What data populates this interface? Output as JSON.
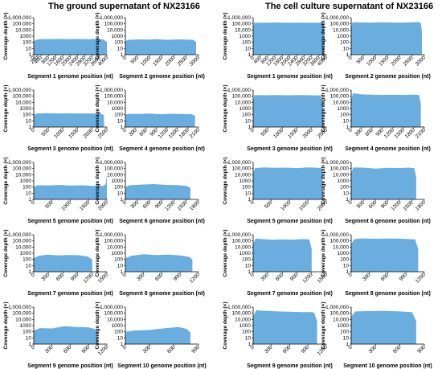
{
  "figure": {
    "left_title": "The ground supernatant of NX23166",
    "right_title": "The cell culture supernatant of NX23166",
    "fill_color": "#6aaee0",
    "y_axis_label": "Coverage depth (×)",
    "y_tick_labels": [
      "1",
      "10",
      "100",
      "1000",
      "10,000",
      "100,000",
      "1,000,000"
    ],
    "scale": "log"
  },
  "chart_data": [
    {
      "type": "area",
      "panel": "ground",
      "title": "Segment 1 genome position (nt)",
      "xlabel": "Segment 1 genome position (nt)",
      "ylabel": "Coverage depth (×)",
      "yscale": "log",
      "ylim": [
        1,
        1000000
      ],
      "xlim": [
        0,
        4000
      ],
      "xticks": [
        0,
        200,
        400,
        800,
        1200,
        1600,
        2000,
        2400,
        2800,
        3200,
        3600,
        4000
      ],
      "xtick_labels": [
        "0",
        "200",
        "400",
        "800",
        "1200",
        "1600",
        "2000",
        "2400",
        "2800",
        "3200",
        "3600",
        "4000"
      ],
      "x": [
        0,
        200,
        600,
        1000,
        1400,
        1800,
        2200,
        2600,
        3000,
        3400,
        3800,
        4000
      ],
      "y": [
        150,
        300,
        350,
        320,
        360,
        330,
        350,
        340,
        330,
        360,
        300,
        120
      ]
    },
    {
      "type": "area",
      "panel": "ground",
      "title": "Segment 2 genome position (nt)",
      "xlabel": "Segment 2 genome position (nt)",
      "ylabel": "Coverage depth (×)",
      "yscale": "log",
      "ylim": [
        1,
        1000000
      ],
      "xlim": [
        0,
        3000
      ],
      "xticks": [
        0,
        500,
        1000,
        1500,
        2000,
        2500,
        3000
      ],
      "xtick_labels": [
        "0",
        "500",
        "1000",
        "1500",
        "2000",
        "2500",
        "3000"
      ],
      "x": [
        0,
        100,
        500,
        900,
        1300,
        1700,
        2100,
        2500,
        2800,
        2900
      ],
      "y": [
        150,
        250,
        300,
        280,
        320,
        260,
        300,
        280,
        250,
        100
      ]
    },
    {
      "type": "area",
      "panel": "ground",
      "title": "Segment 3 genome position (nt)",
      "xlabel": "Segment 3 genome position (nt)",
      "ylabel": "Coverage depth (×)",
      "yscale": "log",
      "ylim": [
        1,
        1000000
      ],
      "xlim": [
        0,
        2500
      ],
      "xticks": [
        0,
        500,
        1000,
        1500,
        2000,
        2500
      ],
      "xtick_labels": [
        "0",
        "500",
        "1000",
        "1500",
        "2000",
        "2500"
      ],
      "x": [
        0,
        100,
        400,
        800,
        1200,
        1600,
        2000,
        2300,
        2400
      ],
      "y": [
        100,
        150,
        180,
        160,
        170,
        150,
        160,
        140,
        80
      ]
    },
    {
      "type": "area",
      "panel": "ground",
      "title": "Segment 4 genome position (nt)",
      "xlabel": "Segment 4 genome position (nt)",
      "ylabel": "Coverage depth (×)",
      "yscale": "log",
      "ylim": [
        1,
        1000000
      ],
      "xlim": [
        0,
        2100
      ],
      "xticks": [
        0,
        300,
        600,
        900,
        1200,
        1500,
        1800,
        2100
      ],
      "xtick_labels": [
        "0",
        "300",
        "600",
        "900",
        "1200",
        "1500",
        "1800",
        "2100"
      ],
      "x": [
        0,
        100,
        400,
        700,
        1000,
        1300,
        1600,
        1900,
        2000
      ],
      "y": [
        100,
        140,
        130,
        150,
        120,
        140,
        130,
        120,
        70
      ]
    },
    {
      "type": "area",
      "panel": "ground",
      "title": "Segment 5 genome position (nt)",
      "xlabel": "Segment 5 genome position (nt)",
      "ylabel": "Coverage depth (×)",
      "yscale": "log",
      "ylim": [
        1,
        1000000
      ],
      "xlim": [
        0,
        2000
      ],
      "xticks": [
        0,
        500,
        1000,
        1500,
        2000
      ],
      "xtick_labels": [
        "0",
        "500",
        "1000",
        "1500",
        "2000"
      ],
      "x": [
        0,
        100,
        400,
        700,
        1000,
        1300,
        1600,
        1900,
        1970,
        1990,
        2000
      ],
      "y": [
        100,
        200,
        180,
        220,
        170,
        190,
        160,
        150,
        300,
        8000,
        500
      ]
    },
    {
      "type": "area",
      "panel": "ground",
      "title": "Segment 6 genome position (nt)",
      "xlabel": "Segment 6 genome position (nt)",
      "ylabel": "Coverage depth (×)",
      "yscale": "log",
      "ylim": [
        1,
        1000000
      ],
      "xlim": [
        0,
        1800
      ],
      "xticks": [
        0,
        300,
        600,
        900,
        1200,
        1500,
        1800
      ],
      "xtick_labels": [
        "0",
        "300",
        "600",
        "900",
        "1200",
        "1500",
        "1800"
      ],
      "x": [
        0,
        100,
        400,
        700,
        1000,
        1300,
        1500,
        1600
      ],
      "y": [
        100,
        200,
        250,
        300,
        220,
        200,
        150,
        80
      ]
    },
    {
      "type": "area",
      "panel": "ground",
      "title": "Segment 7 genome position (nt)",
      "xlabel": "Segment 7 genome position (nt)",
      "ylabel": "Coverage depth (×)",
      "yscale": "log",
      "ylim": [
        1,
        1000000
      ],
      "xlim": [
        0,
        1500
      ],
      "xticks": [
        0,
        300,
        600,
        900,
        1200,
        1500
      ],
      "xtick_labels": [
        "0",
        "300",
        "600",
        "900",
        "1200",
        "1500"
      ],
      "x": [
        0,
        100,
        300,
        500,
        700,
        900,
        1100,
        1200
      ],
      "y": [
        150,
        400,
        600,
        450,
        500,
        480,
        300,
        100
      ]
    },
    {
      "type": "area",
      "panel": "ground",
      "title": "Segment 8 genome position (nt)",
      "xlabel": "Segment 8 genome position (nt)",
      "ylabel": "Coverage depth (×)",
      "yscale": "log",
      "ylim": [
        1,
        1000000
      ],
      "xlim": [
        0,
        1200
      ],
      "xticks": [
        0,
        300,
        600,
        900,
        1200
      ],
      "xtick_labels": [
        "0",
        "300",
        "600",
        "900",
        "1200"
      ],
      "x": [
        0,
        100,
        300,
        500,
        700,
        900,
        1050,
        1100
      ],
      "y": [
        150,
        400,
        700,
        500,
        600,
        450,
        250,
        100
      ]
    },
    {
      "type": "area",
      "panel": "ground",
      "title": "Segment 9 genome position (nt)",
      "xlabel": "Segment 9 genome position (nt)",
      "ylabel": "Coverage depth (×)",
      "yscale": "log",
      "ylim": [
        1,
        1000000
      ],
      "xlim": [
        0,
        1200
      ],
      "xticks": [
        0,
        300,
        600,
        900,
        1200
      ],
      "xtick_labels": [
        "0",
        "300",
        "600",
        "900",
        "1200"
      ],
      "x": [
        0,
        100,
        300,
        500,
        700,
        900,
        1000,
        1050
      ],
      "y": [
        150,
        400,
        350,
        800,
        600,
        500,
        300,
        100
      ]
    },
    {
      "type": "area",
      "panel": "ground",
      "title": "Segment 10 genome position (nt)",
      "xlabel": "Segment 10 genome position (nt)",
      "ylabel": "Coverage depth (×)",
      "yscale": "log",
      "ylim": [
        1,
        1000000
      ],
      "xlim": [
        0,
        900
      ],
      "xticks": [
        0,
        300,
        600,
        900
      ],
      "xtick_labels": [
        "0",
        "300",
        "600",
        "900"
      ],
      "x": [
        0,
        100,
        300,
        500,
        650,
        750,
        800
      ],
      "y": [
        100,
        150,
        200,
        400,
        600,
        300,
        80
      ]
    },
    {
      "type": "area",
      "panel": "cell",
      "title": "Segment 1 genome position (nt)",
      "xlabel": "Segment 1 genome position (nt)",
      "ylabel": "Coverage depth (×)",
      "yscale": "log",
      "ylim": [
        1,
        1000000
      ],
      "xlim": [
        0,
        4000
      ],
      "xticks": [
        0,
        400,
        800,
        1200,
        1600,
        2000,
        2400,
        2800,
        3200,
        3600,
        4000
      ],
      "xtick_labels": [
        "0",
        "400",
        "800",
        "1200",
        "1600",
        "2000",
        "2400",
        "2800",
        "3200",
        "3600",
        "4000"
      ],
      "x": [
        0,
        50,
        400,
        800,
        1200,
        1600,
        2000,
        2400,
        2800,
        3200,
        3600,
        3850,
        3900
      ],
      "y": [
        20000,
        150000,
        160000,
        150000,
        170000,
        160000,
        150000,
        160000,
        150000,
        160000,
        150000,
        140000,
        5000
      ]
    },
    {
      "type": "area",
      "panel": "cell",
      "title": "Segment 2 genome position (nt)",
      "xlabel": "Segment 2 genome position (nt)",
      "ylabel": "Coverage depth (×)",
      "yscale": "log",
      "ylim": [
        1,
        1000000
      ],
      "xlim": [
        0,
        3000
      ],
      "xticks": [
        0,
        500,
        1000,
        1500,
        2000,
        2500,
        3000
      ],
      "xtick_labels": [
        "0",
        "500",
        "1000",
        "1500",
        "2000",
        "2500",
        "3000"
      ],
      "x": [
        0,
        50,
        400,
        800,
        1200,
        1600,
        2000,
        2400,
        2750,
        2850,
        2900
      ],
      "y": [
        20000,
        180000,
        170000,
        160000,
        180000,
        170000,
        160000,
        170000,
        200000,
        150000,
        5000
      ]
    },
    {
      "type": "area",
      "panel": "cell",
      "title": "Segment 3 genome position (nt)",
      "xlabel": "Segment 3 genome position (nt)",
      "ylabel": "Coverage depth (×)",
      "yscale": "log",
      "ylim": [
        1,
        1000000
      ],
      "xlim": [
        0,
        2500
      ],
      "xticks": [
        0,
        500,
        1000,
        1500,
        2000,
        2500
      ],
      "xtick_labels": [
        "0",
        "500",
        "1000",
        "1500",
        "2000",
        "2500"
      ],
      "x": [
        0,
        50,
        400,
        800,
        1200,
        1600,
        2000,
        2300,
        2400
      ],
      "y": [
        20000,
        150000,
        140000,
        150000,
        140000,
        150000,
        140000,
        130000,
        5000
      ]
    },
    {
      "type": "area",
      "panel": "cell",
      "title": "Segment 4 genome position (nt)",
      "xlabel": "Segment 4 genome position (nt)",
      "ylabel": "Coverage depth (×)",
      "yscale": "log",
      "ylim": [
        1,
        1000000
      ],
      "xlim": [
        0,
        2100
      ],
      "xticks": [
        0,
        300,
        600,
        900,
        1200,
        1500,
        1800,
        2100
      ],
      "xtick_labels": [
        "0",
        "300",
        "600",
        "900",
        "1200",
        "1500",
        "1800",
        "2100"
      ],
      "x": [
        0,
        50,
        300,
        600,
        900,
        1200,
        1500,
        1800,
        1950,
        2000
      ],
      "y": [
        30000,
        300000,
        200000,
        180000,
        160000,
        170000,
        160000,
        180000,
        150000,
        5000
      ]
    },
    {
      "type": "area",
      "panel": "cell",
      "title": "Segment 5 genome position (nt)",
      "xlabel": "Segment 5 genome position (nt)",
      "ylabel": "Coverage depth (×)",
      "yscale": "log",
      "ylim": [
        1,
        1000000
      ],
      "xlim": [
        0,
        2000
      ],
      "xticks": [
        0,
        500,
        1000,
        1500,
        2000
      ],
      "xtick_labels": [
        "0",
        "500",
        "1000",
        "1500",
        "2000"
      ],
      "x": [
        0,
        50,
        300,
        600,
        900,
        1200,
        1500,
        1800,
        1880,
        1900
      ],
      "y": [
        20000,
        120000,
        150000,
        130000,
        140000,
        120000,
        150000,
        130000,
        100000,
        5000
      ]
    },
    {
      "type": "area",
      "panel": "cell",
      "title": "Segment 6 genome position (nt)",
      "xlabel": "Segment 6 genome position (nt)",
      "ylabel": "Coverage depth (×)",
      "yscale": "log",
      "ylim": [
        1,
        1000000
      ],
      "xlim": [
        0,
        1800
      ],
      "xticks": [
        0,
        300,
        600,
        900,
        1200,
        1500,
        1800
      ],
      "xtick_labels": [
        "0",
        "300",
        "600",
        "900",
        "1200",
        "1500",
        "1800"
      ],
      "x": [
        0,
        50,
        300,
        600,
        900,
        1200,
        1400,
        1550,
        1600
      ],
      "y": [
        20000,
        150000,
        140000,
        100000,
        130000,
        120000,
        140000,
        120000,
        5000
      ]
    },
    {
      "type": "area",
      "panel": "cell",
      "title": "Segment 7 genome position (nt)",
      "xlabel": "Segment 7 genome position (nt)",
      "ylabel": "Coverage depth (×)",
      "yscale": "log",
      "ylim": [
        1,
        1000000
      ],
      "xlim": [
        0,
        1500
      ],
      "xticks": [
        0,
        300,
        600,
        900,
        1200,
        1500
      ],
      "xtick_labels": [
        "0",
        "300",
        "600",
        "900",
        "1200",
        "1500"
      ],
      "x": [
        0,
        50,
        200,
        400,
        600,
        800,
        1000,
        1150,
        1200
      ],
      "y": [
        30000,
        250000,
        200000,
        150000,
        180000,
        160000,
        200000,
        180000,
        5000
      ]
    },
    {
      "type": "area",
      "panel": "cell",
      "title": "Segment 8 genome position (nt)",
      "xlabel": "Segment 8 genome position (nt)",
      "ylabel": "Coverage depth (×)",
      "yscale": "log",
      "ylim": [
        1,
        1000000
      ],
      "xlim": [
        0,
        1200
      ],
      "xticks": [
        0,
        300,
        600,
        900,
        1200
      ],
      "xtick_labels": [
        "0",
        "300",
        "600",
        "900",
        "1200"
      ],
      "x": [
        0,
        50,
        200,
        400,
        600,
        800,
        950,
        1050,
        1100
      ],
      "y": [
        30000,
        200000,
        250000,
        220000,
        250000,
        230000,
        200000,
        180000,
        5000
      ]
    },
    {
      "type": "area",
      "panel": "cell",
      "title": "Segment 9 genome position (nt)",
      "xlabel": "Segment 9 genome position (nt)",
      "ylabel": "Coverage depth (×)",
      "yscale": "log",
      "ylim": [
        1,
        1000000
      ],
      "xlim": [
        0,
        1200
      ],
      "xticks": [
        0,
        300,
        600,
        900,
        1200
      ],
      "xtick_labels": [
        "0",
        "300",
        "600",
        "900",
        "1200"
      ],
      "x": [
        0,
        50,
        200,
        400,
        600,
        800,
        950,
        1000,
        1050
      ],
      "y": [
        30000,
        300000,
        250000,
        200000,
        180000,
        150000,
        160000,
        130000,
        5000
      ]
    },
    {
      "type": "area",
      "panel": "cell",
      "title": "Segment 10 genome position (nt)",
      "xlabel": "Segment 10 genome position (nt)",
      "ylabel": "Coverage depth (×)",
      "yscale": "log",
      "ylim": [
        1,
        1000000
      ],
      "xlim": [
        0,
        900
      ],
      "xticks": [
        0,
        300,
        600,
        900
      ],
      "xtick_labels": [
        "0",
        "300",
        "600",
        "900"
      ],
      "x": [
        0,
        50,
        200,
        400,
        600,
        750,
        800
      ],
      "y": [
        30000,
        200000,
        220000,
        250000,
        200000,
        150000,
        5000
      ]
    }
  ]
}
